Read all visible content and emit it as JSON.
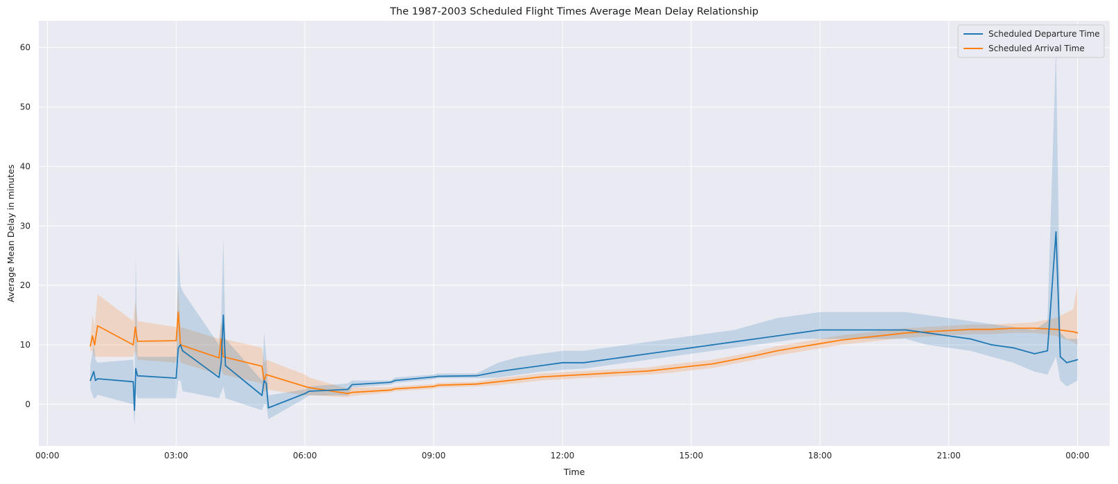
{
  "chart_data": {
    "type": "line",
    "title": "The 1987-2003 Scheduled Flight Times Average Mean Delay Relationship",
    "xlabel": "Time",
    "ylabel": "Average Mean Delay in minutes",
    "xlim_hours": [
      -0.2,
      24.75
    ],
    "ylim": [
      -7,
      64.5
    ],
    "x_ticks": [
      {
        "hour": 0,
        "label": "00:00"
      },
      {
        "hour": 3,
        "label": "03:00"
      },
      {
        "hour": 6,
        "label": "06:00"
      },
      {
        "hour": 9,
        "label": "09:00"
      },
      {
        "hour": 12,
        "label": "12:00"
      },
      {
        "hour": 15,
        "label": "15:00"
      },
      {
        "hour": 18,
        "label": "18:00"
      },
      {
        "hour": 21,
        "label": "21:00"
      },
      {
        "hour": 24,
        "label": "00:00"
      }
    ],
    "y_ticks": [
      0,
      10,
      20,
      30,
      40,
      50,
      60
    ],
    "grid": true,
    "legend_position": "top-right",
    "legend": [
      "Scheduled Departure Time",
      "Scheduled Arrival Time"
    ],
    "series": [
      {
        "name": "Scheduled Departure Time",
        "color": "#1f77b4",
        "x_hours": [
          1.0,
          1.08,
          1.12,
          1.17,
          2.0,
          2.03,
          2.06,
          2.1,
          3.0,
          3.05,
          3.1,
          3.15,
          4.0,
          4.05,
          4.1,
          4.15,
          5.0,
          5.05,
          5.1,
          5.15,
          6.0,
          6.1,
          7.0,
          7.1,
          8.0,
          8.1,
          9.0,
          9.1,
          10.0,
          10.5,
          11.0,
          11.5,
          12.0,
          12.5,
          13.0,
          13.5,
          14.0,
          14.5,
          15.0,
          15.5,
          16.0,
          16.5,
          17.0,
          17.5,
          18.0,
          18.5,
          19.0,
          19.5,
          20.0,
          20.5,
          21.0,
          21.5,
          22.0,
          22.5,
          23.0,
          23.3,
          23.5,
          23.6,
          23.75,
          24.0
        ],
        "values": [
          4.0,
          5.5,
          4.0,
          4.3,
          3.8,
          -1.0,
          6.0,
          4.8,
          4.4,
          9.5,
          10.0,
          9.0,
          4.5,
          7.0,
          15.0,
          6.5,
          1.5,
          4.0,
          3.5,
          -0.6,
          1.8,
          2.2,
          2.5,
          3.3,
          3.7,
          4.0,
          4.6,
          4.7,
          4.8,
          5.5,
          6.0,
          6.5,
          7.0,
          7.0,
          7.5,
          8.0,
          8.5,
          9.0,
          9.5,
          10.0,
          10.5,
          11.0,
          11.5,
          12.0,
          12.5,
          12.5,
          12.5,
          12.5,
          12.5,
          12.0,
          11.5,
          11.0,
          10.0,
          9.5,
          8.5,
          9.0,
          29.0,
          8.0,
          7.0,
          7.5
        ],
        "ci_lower": [
          2.5,
          1.0,
          1.0,
          1.6,
          0.0,
          -3.8,
          2.0,
          1.0,
          1.0,
          4.0,
          4.0,
          2.2,
          1.0,
          2.0,
          3.0,
          1.0,
          -1.0,
          0.0,
          0.0,
          -2.5,
          1.0,
          1.5,
          1.5,
          2.8,
          3.3,
          3.6,
          4.2,
          4.4,
          4.4,
          4.5,
          5.0,
          5.5,
          5.8,
          6.0,
          6.5,
          7.0,
          7.5,
          8.0,
          8.5,
          9.0,
          9.5,
          10.0,
          10.5,
          11.0,
          11.0,
          11.0,
          11.0,
          11.0,
          11.0,
          10.0,
          9.5,
          9.0,
          8.0,
          7.0,
          5.5,
          5.0,
          8.0,
          4.0,
          3.0,
          4.0
        ],
        "ci_upper": [
          6.5,
          10.0,
          7.5,
          7.0,
          7.5,
          3.0,
          25.0,
          8.0,
          8.0,
          27.0,
          20.0,
          19.0,
          10.0,
          14.0,
          28.0,
          11.0,
          4.0,
          12.0,
          8.0,
          1.5,
          2.5,
          3.0,
          3.5,
          4.0,
          4.0,
          4.5,
          5.0,
          5.2,
          5.2,
          7.0,
          8.0,
          8.5,
          9.0,
          9.0,
          9.5,
          10.0,
          10.5,
          11.0,
          11.5,
          12.0,
          12.5,
          13.5,
          14.5,
          15.0,
          15.5,
          15.5,
          15.5,
          15.5,
          15.5,
          15.0,
          14.5,
          14.0,
          13.5,
          13.0,
          12.5,
          14.0,
          60.0,
          12.0,
          11.0,
          11.0
        ]
      },
      {
        "name": "Scheduled Arrival Time",
        "color": "#ff7f0e",
        "x_hours": [
          1.0,
          1.05,
          1.1,
          1.17,
          2.0,
          2.05,
          2.1,
          3.0,
          3.05,
          3.1,
          4.0,
          4.05,
          4.1,
          5.0,
          5.05,
          5.1,
          6.0,
          6.1,
          7.0,
          7.1,
          8.0,
          8.1,
          9.0,
          9.1,
          10.0,
          10.5,
          11.0,
          11.5,
          12.0,
          12.5,
          13.0,
          13.5,
          14.0,
          14.5,
          15.0,
          15.5,
          16.0,
          16.5,
          17.0,
          17.5,
          18.0,
          18.5,
          19.0,
          19.5,
          20.0,
          20.5,
          21.0,
          21.5,
          22.0,
          22.5,
          23.0,
          23.5,
          23.9,
          24.0
        ],
        "values": [
          9.8,
          11.5,
          10.0,
          13.2,
          10.0,
          13.0,
          10.6,
          10.7,
          15.5,
          10.0,
          7.8,
          11.0,
          8.0,
          6.4,
          4.0,
          5.0,
          3.0,
          2.8,
          1.8,
          2.0,
          2.4,
          2.6,
          3.0,
          3.2,
          3.4,
          3.8,
          4.2,
          4.6,
          4.8,
          5.0,
          5.2,
          5.4,
          5.6,
          6.0,
          6.4,
          6.8,
          7.5,
          8.2,
          9.0,
          9.6,
          10.2,
          10.8,
          11.2,
          11.6,
          12.0,
          12.2,
          12.4,
          12.6,
          12.6,
          12.8,
          12.8,
          12.6,
          12.2,
          12.0
        ],
        "ci_lower": [
          9.0,
          9.0,
          8.0,
          8.0,
          8.0,
          9.0,
          7.5,
          7.0,
          10.0,
          7.0,
          5.0,
          6.0,
          5.0,
          3.5,
          2.0,
          2.5,
          1.5,
          1.5,
          1.2,
          1.4,
          2.0,
          2.2,
          2.6,
          2.8,
          3.0,
          3.2,
          3.6,
          4.0,
          4.2,
          4.4,
          4.6,
          4.8,
          5.0,
          5.3,
          5.7,
          6.1,
          6.8,
          7.5,
          8.2,
          8.8,
          9.4,
          10.0,
          10.4,
          10.8,
          11.2,
          11.4,
          11.6,
          11.8,
          11.8,
          12.0,
          12.0,
          11.5,
          10.5,
          10.0
        ],
        "ci_upper": [
          11.0,
          15.0,
          13.0,
          18.5,
          14.0,
          17.5,
          14.0,
          13.0,
          20.0,
          13.0,
          11.0,
          14.0,
          11.0,
          9.5,
          7.0,
          7.5,
          5.0,
          4.5,
          2.6,
          2.8,
          2.9,
          3.0,
          3.4,
          3.6,
          3.8,
          4.4,
          4.8,
          5.2,
          5.4,
          5.6,
          5.8,
          6.0,
          6.2,
          6.7,
          7.1,
          7.5,
          8.2,
          8.9,
          9.8,
          10.4,
          11.0,
          11.6,
          12.0,
          12.4,
          12.8,
          13.0,
          13.2,
          13.4,
          13.4,
          13.6,
          13.8,
          14.5,
          16.0,
          20.0
        ]
      }
    ]
  }
}
